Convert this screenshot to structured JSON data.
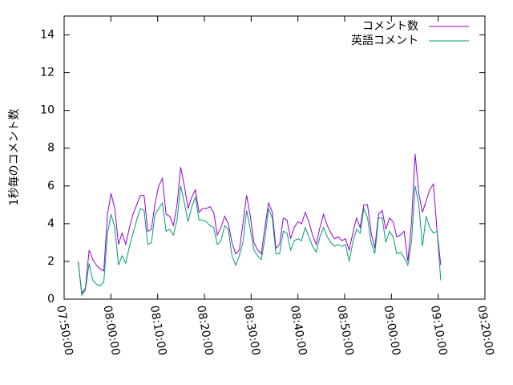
{
  "chart_data": {
    "type": "line",
    "ylabel": "1秒毎のコメント数",
    "x": [
      "07:53:00",
      "07:53:47",
      "07:54:34",
      "07:55:21",
      "07:56:08",
      "07:56:55",
      "07:57:42",
      "07:58:29",
      "07:59:16",
      "08:00:03",
      "08:00:50",
      "08:01:37",
      "08:02:24",
      "08:03:11",
      "08:03:58",
      "08:04:45",
      "08:05:32",
      "08:06:19",
      "08:07:06",
      "08:07:53",
      "08:08:40",
      "08:09:27",
      "08:10:14",
      "08:11:01",
      "08:11:48",
      "08:12:35",
      "08:13:22",
      "08:14:09",
      "08:14:56",
      "08:15:43",
      "08:16:30",
      "08:17:17",
      "08:18:04",
      "08:18:51",
      "08:19:38",
      "08:20:25",
      "08:21:12",
      "08:21:59",
      "08:22:46",
      "08:23:33",
      "08:24:20",
      "08:25:07",
      "08:25:54",
      "08:26:41",
      "08:27:28",
      "08:28:15",
      "08:29:02",
      "08:29:49",
      "08:30:36",
      "08:31:23",
      "08:32:10",
      "08:32:57",
      "08:33:44",
      "08:34:31",
      "08:35:18",
      "08:36:05",
      "08:36:52",
      "08:37:39",
      "08:38:26",
      "08:39:13",
      "08:40:00",
      "08:40:47",
      "08:41:34",
      "08:42:21",
      "08:43:08",
      "08:43:55",
      "08:44:42",
      "08:45:29",
      "08:46:16",
      "08:47:03",
      "08:47:50",
      "08:48:37",
      "08:49:24",
      "08:50:11",
      "08:50:58",
      "08:51:45",
      "08:52:32",
      "08:53:19",
      "08:54:06",
      "08:54:53",
      "08:55:40",
      "08:56:27",
      "08:57:14",
      "08:58:01",
      "08:58:48",
      "08:59:35",
      "09:00:22",
      "09:01:09",
      "09:01:56",
      "09:02:43",
      "09:03:30",
      "09:04:17",
      "09:05:04",
      "09:05:51",
      "09:06:38",
      "09:07:25",
      "09:08:12",
      "09:08:59",
      "09:09:46",
      "09:10:33"
    ],
    "series": [
      {
        "name": "コメント数",
        "color": "#9400d3",
        "values": [
          2.0,
          0.3,
          0.6,
          2.6,
          2.1,
          1.8,
          1.6,
          1.5,
          4.5,
          5.6,
          4.8,
          2.9,
          3.5,
          2.9,
          3.8,
          4.5,
          5.0,
          5.5,
          5.5,
          3.6,
          3.7,
          5.1,
          6.0,
          6.4,
          4.5,
          4.4,
          3.9,
          5.0,
          7.0,
          6.0,
          4.8,
          5.4,
          5.8,
          4.6,
          4.8,
          4.8,
          4.9,
          4.6,
          3.4,
          3.8,
          4.4,
          4.0,
          3.0,
          2.4,
          2.6,
          4.0,
          5.5,
          4.4,
          3.0,
          2.6,
          2.4,
          3.8,
          5.1,
          4.6,
          2.7,
          2.9,
          4.3,
          4.2,
          3.2,
          3.8,
          4.1,
          4.0,
          4.6,
          4.1,
          3.4,
          2.9,
          3.8,
          4.5,
          3.9,
          3.5,
          3.2,
          3.3,
          3.1,
          3.2,
          2.6,
          3.5,
          4.3,
          3.8,
          5.0,
          5.0,
          3.5,
          2.7,
          4.5,
          4.7,
          3.7,
          4.3,
          4.1,
          3.3,
          3.4,
          3.6,
          2.0,
          4.0,
          7.7,
          5.6,
          4.6,
          5.2,
          5.8,
          6.1,
          3.6,
          1.8
        ]
      },
      {
        "name": "英語コメント",
        "color": "#009e73",
        "values": [
          2.0,
          0.2,
          0.5,
          1.9,
          1.0,
          0.8,
          0.7,
          0.9,
          3.5,
          4.5,
          3.8,
          1.8,
          2.3,
          1.9,
          2.8,
          3.5,
          4.2,
          4.8,
          4.7,
          2.9,
          3.0,
          4.5,
          4.8,
          5.1,
          3.6,
          3.7,
          3.4,
          4.2,
          6.0,
          5.1,
          4.1,
          4.9,
          5.4,
          4.2,
          4.2,
          4.1,
          3.9,
          3.8,
          2.9,
          3.1,
          3.9,
          3.7,
          2.3,
          1.8,
          2.3,
          3.0,
          4.7,
          3.7,
          2.6,
          2.3,
          2.1,
          3.2,
          4.8,
          4.3,
          2.4,
          2.4,
          3.6,
          3.5,
          2.6,
          3.1,
          3.2,
          3.1,
          3.8,
          3.3,
          2.8,
          2.5,
          3.3,
          3.8,
          3.3,
          3.0,
          2.8,
          2.9,
          2.8,
          2.9,
          2.0,
          3.0,
          3.7,
          3.5,
          4.8,
          4.3,
          3.0,
          2.4,
          4.3,
          4.3,
          3.0,
          3.6,
          3.3,
          2.4,
          2.5,
          2.2,
          1.8,
          3.0,
          6.0,
          5.0,
          2.8,
          4.4,
          3.8,
          3.5,
          3.6,
          1.0
        ]
      }
    ],
    "xlim": [
      "07:50:00",
      "09:20:00"
    ],
    "xticks": [
      "07:50:00",
      "08:00:00",
      "08:10:00",
      "08:20:00",
      "08:30:00",
      "08:40:00",
      "08:50:00",
      "09:00:00",
      "09:10:00",
      "09:20:00"
    ],
    "ylim": [
      0,
      15
    ],
    "yticks": [
      0,
      2,
      4,
      6,
      8,
      10,
      12,
      14
    ],
    "legend": "upper right"
  }
}
